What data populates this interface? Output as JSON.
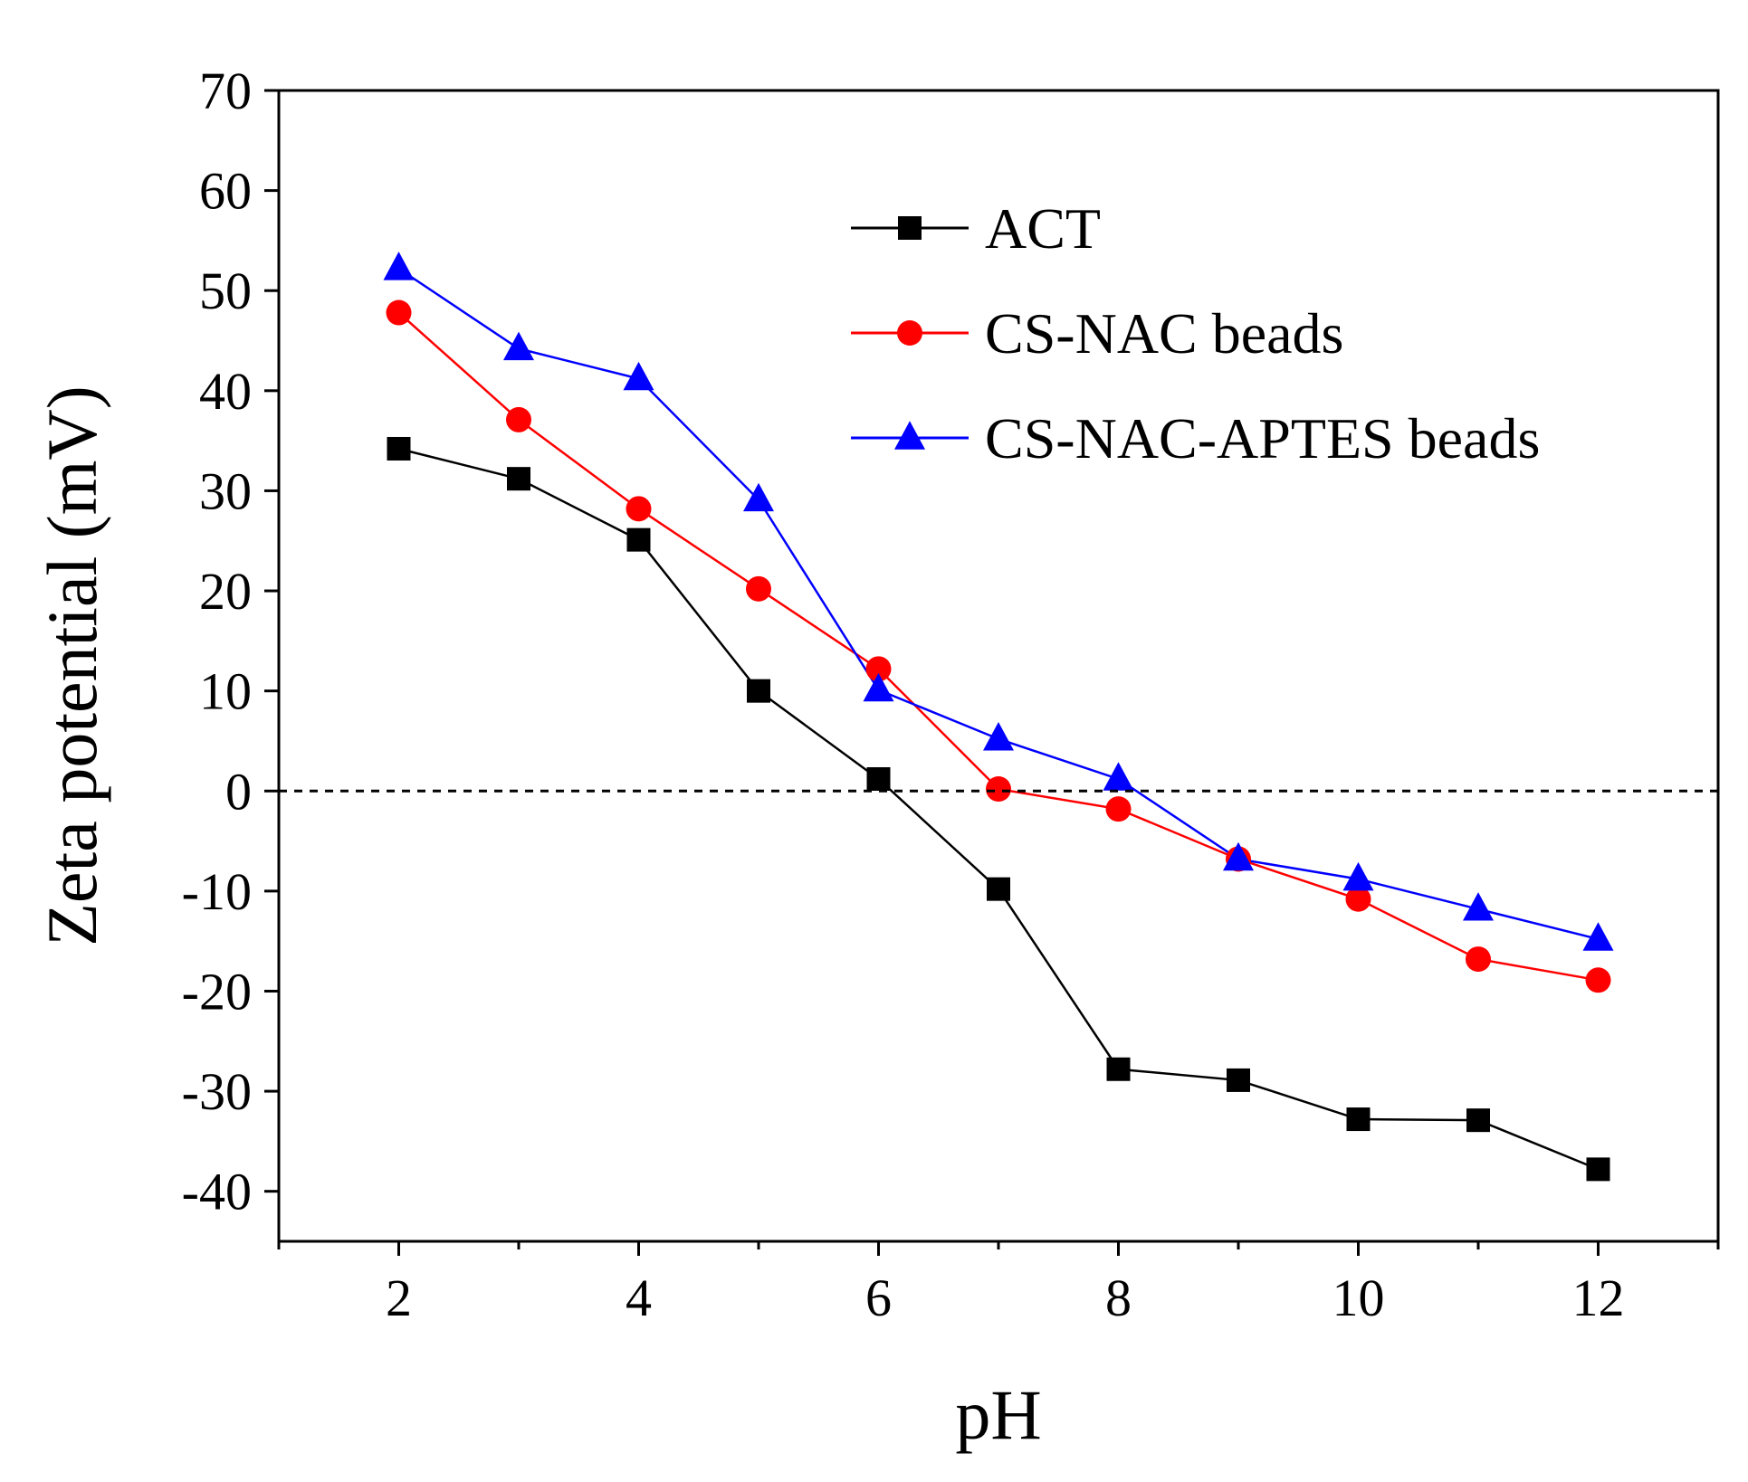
{
  "chart_data": {
    "type": "line",
    "xlabel": "pH",
    "ylabel": "Zeta potential (mV)",
    "xlim": [
      1,
      13
    ],
    "ylim": [
      -45,
      70
    ],
    "xticks": [
      2,
      4,
      6,
      8,
      10,
      12
    ],
    "xtick_labels": [
      "2",
      "4",
      "6",
      "8",
      "10",
      "12"
    ],
    "yticks": [
      -40,
      -30,
      -20,
      -10,
      0,
      10,
      20,
      30,
      40,
      50,
      60,
      70
    ],
    "ytick_labels": [
      "-40",
      "-30",
      "-20",
      "-10",
      "0",
      "10",
      "20",
      "30",
      "40",
      "50",
      "60",
      "70"
    ],
    "reference_line": {
      "y": 0,
      "style": "dashed"
    },
    "grid": false,
    "legend_position": "top-right",
    "x": [
      2,
      3,
      4,
      5,
      6,
      7,
      8,
      9,
      10,
      11,
      12
    ],
    "series": [
      {
        "name": "ACT",
        "color": "#000000",
        "marker": "square",
        "values": [
          34.2,
          31.2,
          25.1,
          10.0,
          1.2,
          -9.8,
          -27.8,
          -28.9,
          -32.8,
          -32.9,
          -37.8
        ]
      },
      {
        "name": "CS-NAC beads",
        "color": "#ff0000",
        "marker": "circle",
        "values": [
          47.8,
          37.1,
          28.2,
          20.2,
          12.2,
          0.2,
          -1.8,
          -6.8,
          -10.8,
          -16.8,
          -18.9
        ]
      },
      {
        "name": "CS-NAC-APTES beads",
        "color": "#0000ff",
        "marker": "triangle",
        "values": [
          52.2,
          44.2,
          41.2,
          29.1,
          10.1,
          5.2,
          1.2,
          -6.8,
          -8.8,
          -11.8,
          -14.8
        ]
      }
    ]
  }
}
